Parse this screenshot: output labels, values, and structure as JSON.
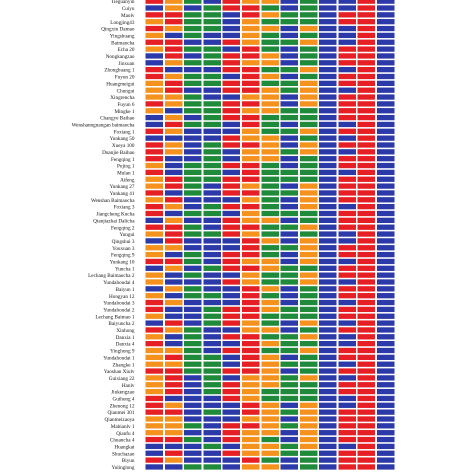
{
  "colors": {
    "A": "#f5921e",
    "C": "#2b3aa8",
    "G": "#1f8a3a",
    "T": "#e51f23"
  },
  "row_labels": [
    "Tieguanyin",
    "Cuiyu",
    "Maolv",
    "Longjing43",
    "Qingxin Damao",
    "Yingshuang",
    "Baimaocha",
    "Echa 20",
    "Nongkangzao",
    "Jinxuan",
    "Zhonghuang 1",
    "Fuyun 20",
    "Huangmeigui",
    "Chungui",
    "Xingrencha",
    "Fuyun 6",
    "Mingke 1",
    "Changye Baihao",
    "Wenshanngnangan baimaocha",
    "Foxiang 1",
    "Yunkang 50",
    "Xueya 100",
    "Duanjie Baihao",
    "Fengqing 1",
    "Pujing 1",
    "Mulan 1",
    "Aifeng",
    "Yunkang 27",
    "Yunkang 41",
    "Wenshan Baimaocha",
    "Foxiang 3",
    "Jiangcheng Kucha",
    "Qianjiazhai Dalicha",
    "Fengqing 2",
    "Yungui",
    "Qingshui 3",
    "Youxuan 3",
    "Fengqing 9",
    "Yunkang 10",
    "Yuncha 1",
    "Lechang Baimaocha 2",
    "Yundahoudai 4",
    "Baiyun 1",
    "Hongyan 12",
    "Yundahoudai 3",
    "Yundahoudai 2",
    "Lechang Baimao 1",
    "Baiyuncha 2",
    "Xinhong",
    "Danxia 1",
    "Danxia 4",
    "Yinghong 9",
    "Yundahoudai 1",
    "Zhangke 1",
    "Yaoshan Xiulv",
    "Guixiang 22",
    "Hanlv",
    "Jiukengzao",
    "Guihong 4",
    "Zhenong 12",
    "Qianmei 301",
    "Qianmeizaoya",
    "Mabianlv 1",
    "Qianfu 4",
    "Chuancha 4",
    "Huangkai",
    "Shuchazao",
    "Biyun",
    "Yulinglong"
  ],
  "columns": [
    [
      "T",
      "C",
      "T",
      "A",
      "T",
      "A",
      "T",
      "A",
      "C",
      "C",
      "T",
      "T",
      "A",
      "A",
      "A",
      "T",
      "A",
      "C",
      "C",
      "T",
      "C",
      "T",
      "T",
      "T",
      "A",
      "T",
      "A",
      "A",
      "T",
      "A",
      "T",
      "T",
      "C",
      "T",
      "A",
      "C",
      "A",
      "A",
      "T",
      "C",
      "A",
      "A",
      "C",
      "A",
      "T",
      "T",
      "A",
      "C",
      "T",
      "A",
      "T",
      "A",
      "A",
      "A",
      "T",
      "A",
      "A",
      "A",
      "T",
      "T",
      "T",
      "A",
      "A",
      "A",
      "T",
      "C",
      "C",
      "T",
      "C"
    ],
    [
      "A",
      "A",
      "T",
      "T",
      "A",
      "C",
      "T",
      "T",
      "T",
      "A",
      "C",
      "A",
      "T",
      "T",
      "A",
      "A",
      "C",
      "A",
      "T",
      "A",
      "C",
      "A",
      "A",
      "C",
      "C",
      "C",
      "T",
      "T",
      "C",
      "T",
      "A",
      "C",
      "A",
      "T",
      "T",
      "T",
      "A",
      "C",
      "T",
      "A",
      "C",
      "C",
      "A",
      "C",
      "A",
      "C",
      "C",
      "T",
      "A",
      "C",
      "C",
      "A",
      "T",
      "A",
      "T",
      "T",
      "T",
      "T",
      "C",
      "A",
      "T",
      "A",
      "A",
      "A",
      "T",
      "C",
      "T",
      "A",
      "C"
    ],
    [
      "G",
      "C",
      "G",
      "G",
      "G",
      "G",
      "C",
      "G",
      "C",
      "G",
      "C",
      "G",
      "G",
      "C",
      "G",
      "G",
      "G",
      "C",
      "G",
      "C",
      "C",
      "C",
      "C",
      "C",
      "G",
      "G",
      "G",
      "G",
      "G",
      "C",
      "C",
      "G",
      "C",
      "G",
      "G",
      "C",
      "C",
      "G",
      "G",
      "C",
      "G",
      "C",
      "G",
      "G",
      "C",
      "C",
      "C",
      "C",
      "G",
      "G",
      "G",
      "G",
      "G",
      "G",
      "G",
      "C",
      "C",
      "C",
      "C",
      "C",
      "C",
      "C",
      "G",
      "C",
      "G",
      "C",
      "C",
      "C",
      "G"
    ],
    [
      "C",
      "G",
      "G",
      "G",
      "G",
      "C",
      "C",
      "G",
      "G",
      "G",
      "C",
      "G",
      "G",
      "C",
      "C",
      "G",
      "G",
      "G",
      "G",
      "C",
      "C",
      "G",
      "G",
      "G",
      "G",
      "G",
      "G",
      "C",
      "C",
      "C",
      "G",
      "G",
      "C",
      "C",
      "G",
      "C",
      "C",
      "C",
      "C",
      "G",
      "C",
      "C",
      "C",
      "G",
      "C",
      "G",
      "G",
      "G",
      "C",
      "C",
      "C",
      "C",
      "G",
      "G",
      "G",
      "G",
      "G",
      "G",
      "C",
      "C",
      "G",
      "C",
      "C",
      "C",
      "C",
      "G",
      "C",
      "C",
      "G"
    ],
    [
      "T",
      "T",
      "C",
      "C",
      "C",
      "C",
      "T",
      "C",
      "T",
      "T",
      "T",
      "C",
      "T",
      "T",
      "C",
      "T",
      "T",
      "T",
      "C",
      "C",
      "T",
      "T",
      "C",
      "C",
      "T",
      "C",
      "T",
      "T",
      "T",
      "C",
      "T",
      "C",
      "T",
      "T",
      "T",
      "C",
      "C",
      "T",
      "T",
      "T",
      "C",
      "T",
      "C",
      "C",
      "C",
      "T",
      "T",
      "T",
      "C",
      "T",
      "C",
      "T",
      "C",
      "C",
      "T",
      "C",
      "T",
      "T",
      "T",
      "C",
      "C",
      "C",
      "T",
      "T",
      "T",
      "C",
      "T",
      "C",
      "C"
    ],
    [
      "A",
      "T",
      "T",
      "A",
      "A",
      "A",
      "A",
      "T",
      "T",
      "A",
      "T",
      "T",
      "T",
      "T",
      "A",
      "T",
      "A",
      "T",
      "T",
      "A",
      "A",
      "T",
      "A",
      "A",
      "T",
      "T",
      "T",
      "A",
      "T",
      "A",
      "T",
      "A",
      "A",
      "T",
      "A",
      "T",
      "T",
      "T",
      "A",
      "T",
      "A",
      "A",
      "T",
      "T",
      "T",
      "T",
      "T",
      "A",
      "A",
      "T",
      "T",
      "T",
      "T",
      "T",
      "T",
      "A",
      "A",
      "A",
      "A",
      "T",
      "T",
      "A",
      "T",
      "A",
      "A",
      "A",
      "A",
      "T",
      "A"
    ],
    [
      "A",
      "G",
      "A",
      "G",
      "A",
      "G",
      "G",
      "G",
      "A",
      "A",
      "G",
      "A",
      "G",
      "A",
      "A",
      "A",
      "A",
      "G",
      "G",
      "G",
      "A",
      "A",
      "A",
      "A",
      "G",
      "G",
      "G",
      "G",
      "G",
      "G",
      "G",
      "G",
      "A",
      "G",
      "G",
      "A",
      "G",
      "G",
      "A",
      "A",
      "G",
      "G",
      "A",
      "G",
      "A",
      "A",
      "G",
      "G",
      "A",
      "G",
      "A",
      "G",
      "A",
      "A",
      "A",
      "A",
      "A",
      "G",
      "G",
      "A",
      "A",
      "A",
      "A",
      "A",
      "G",
      "A",
      "A",
      "G",
      "A"
    ],
    [
      "C",
      "C",
      "G",
      "G",
      "C",
      "C",
      "G",
      "C",
      "C",
      "C",
      "G",
      "C",
      "G",
      "G",
      "C",
      "C",
      "G",
      "G",
      "C",
      "G",
      "C",
      "C",
      "G",
      "C",
      "C",
      "G",
      "G",
      "C",
      "G",
      "C",
      "C",
      "G",
      "C",
      "G",
      "C",
      "C",
      "G",
      "C",
      "C",
      "G",
      "G",
      "G",
      "C",
      "C",
      "C",
      "G",
      "G",
      "C",
      "C",
      "G",
      "G",
      "G",
      "C",
      "G",
      "C",
      "G",
      "G",
      "G",
      "G",
      "C",
      "G",
      "C",
      "G",
      "C",
      "C",
      "G",
      "G",
      "C",
      "C"
    ],
    [
      "G",
      "G",
      "G",
      "G",
      "A",
      "G",
      "A",
      "G",
      "G",
      "G",
      "A",
      "G",
      "A",
      "A",
      "A",
      "A",
      "G",
      "G",
      "G",
      "A",
      "G",
      "A",
      "A",
      "G",
      "G",
      "G",
      "G",
      "A",
      "A",
      "A",
      "A",
      "G",
      "G",
      "A",
      "G",
      "A",
      "A",
      "A",
      "A",
      "G",
      "A",
      "A",
      "G",
      "G",
      "G",
      "G",
      "G",
      "A",
      "G",
      "A",
      "G",
      "A",
      "G",
      "G",
      "G",
      "A",
      "G",
      "G",
      "G",
      "A",
      "A",
      "A",
      "A",
      "A",
      "A",
      "A",
      "G",
      "G",
      "G"
    ],
    [
      "C",
      "C",
      "C",
      "C",
      "C",
      "C",
      "C",
      "C",
      "C",
      "C",
      "C",
      "C",
      "C",
      "C",
      "C",
      "C",
      "C",
      "C",
      "C",
      "C",
      "C",
      "C",
      "C",
      "C",
      "C",
      "C",
      "C",
      "C",
      "C",
      "C",
      "C",
      "C",
      "C",
      "C",
      "C",
      "C",
      "C",
      "C",
      "C",
      "C",
      "C",
      "C",
      "C",
      "C",
      "C",
      "C",
      "C",
      "C",
      "C",
      "C",
      "C",
      "C",
      "C",
      "C",
      "C",
      "C",
      "C",
      "C",
      "C",
      "C",
      "C",
      "C",
      "C",
      "C",
      "C",
      "C",
      "C",
      "C",
      "C"
    ],
    [
      "C",
      "C",
      "T",
      "T",
      "C",
      "C",
      "C",
      "T",
      "T",
      "T",
      "C",
      "T",
      "T",
      "C",
      "T",
      "T",
      "T",
      "T",
      "C",
      "T",
      "C",
      "T",
      "C",
      "T",
      "T",
      "C",
      "T",
      "T",
      "T",
      "T",
      "C",
      "T",
      "T",
      "T",
      "C",
      "C",
      "T",
      "T",
      "C",
      "T",
      "T",
      "C",
      "T",
      "T",
      "C",
      "T",
      "T",
      "C",
      "T",
      "C",
      "C",
      "T",
      "T",
      "C",
      "T",
      "C",
      "T",
      "T",
      "C",
      "C",
      "T",
      "T",
      "T",
      "T",
      "T",
      "C",
      "T",
      "T",
      "T"
    ],
    [
      "T",
      "T",
      "T",
      "T",
      "T",
      "T",
      "T",
      "T",
      "T",
      "T",
      "T",
      "T",
      "T",
      "T",
      "T",
      "T",
      "T",
      "T",
      "T",
      "T",
      "T",
      "T",
      "T",
      "T",
      "T",
      "T",
      "T",
      "T",
      "T",
      "T",
      "T",
      "T",
      "T",
      "T",
      "T",
      "T",
      "T",
      "T",
      "T",
      "T",
      "T",
      "T",
      "T",
      "T",
      "T",
      "T",
      "T",
      "T",
      "T",
      "T",
      "T",
      "T",
      "T",
      "T",
      "T",
      "T",
      "T",
      "T",
      "T",
      "T",
      "T",
      "T",
      "T",
      "T",
      "T",
      "T",
      "T",
      "T",
      "T"
    ],
    [
      "C",
      "C",
      "C",
      "C",
      "C",
      "C",
      "C",
      "C",
      "C",
      "C",
      "C",
      "C",
      "C",
      "C",
      "C",
      "C",
      "C",
      "C",
      "C",
      "C",
      "C",
      "C",
      "C",
      "C",
      "C",
      "C",
      "C",
      "C",
      "C",
      "C",
      "C",
      "C",
      "C",
      "C",
      "C",
      "C",
      "C",
      "C",
      "C",
      "C",
      "C",
      "C",
      "C",
      "C",
      "C",
      "C",
      "C",
      "C",
      "C",
      "C",
      "C",
      "C",
      "C",
      "C",
      "C",
      "C",
      "C",
      "C",
      "C",
      "C",
      "C",
      "C",
      "C",
      "C",
      "C",
      "C",
      "C",
      "C",
      "C"
    ]
  ]
}
